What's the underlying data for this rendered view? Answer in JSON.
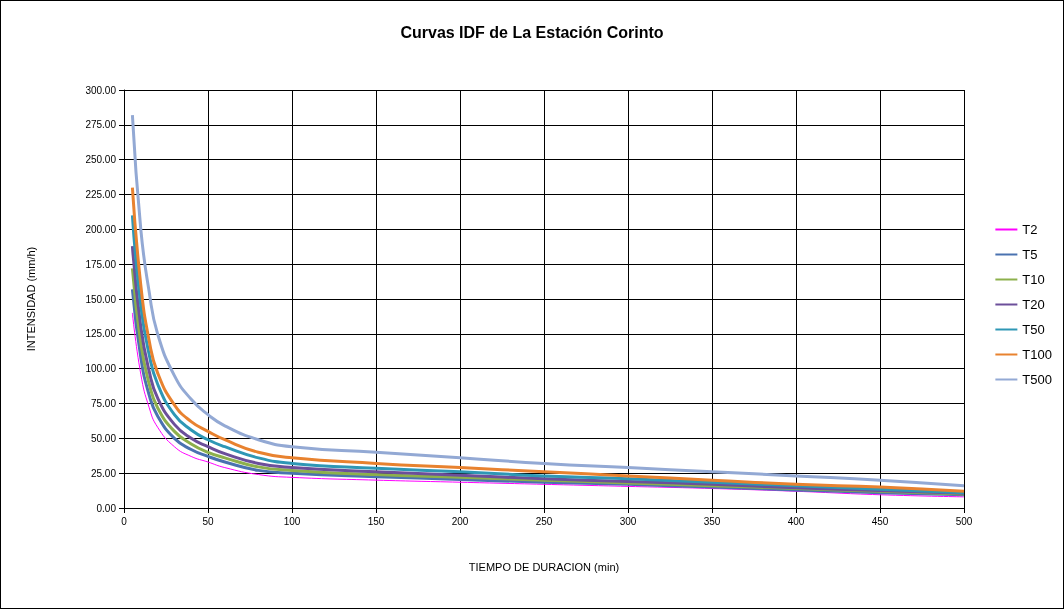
{
  "chart_data": {
    "type": "line",
    "title": "Curvas IDF de La Estación Corinto",
    "xlabel": "TIEMPO DE DURACION (min)",
    "ylabel": "INTENSIDAD (mm/h)",
    "x": [
      5,
      10,
      15,
      20,
      30,
      40,
      50,
      60,
      80,
      100,
      150,
      200,
      250,
      300,
      350,
      400,
      450,
      500
    ],
    "xlim": [
      0,
      500
    ],
    "xticks": [
      0,
      50,
      100,
      150,
      200,
      250,
      300,
      350,
      400,
      450,
      500
    ],
    "ylim": [
      0,
      300
    ],
    "yticks": [
      {
        "value": 0,
        "label": "0.00"
      },
      {
        "value": 25,
        "label": "25.00"
      },
      {
        "value": 50,
        "label": "50.00"
      },
      {
        "value": 75,
        "label": "75.00"
      },
      {
        "value": 100,
        "label": "100.00"
      },
      {
        "value": 125,
        "label": "125.00"
      },
      {
        "value": 150,
        "label": "150.00"
      },
      {
        "value": 175,
        "label": "175.00"
      },
      {
        "value": 200,
        "label": "200.00"
      },
      {
        "value": 225,
        "label": "225.00"
      },
      {
        "value": 250,
        "label": "250.00"
      },
      {
        "value": 275,
        "label": "275.00"
      },
      {
        "value": 300,
        "label": "300.00"
      }
    ],
    "grid": true,
    "legend": "right",
    "marker": "none",
    "line_style": "solid",
    "series": [
      {
        "name": "T2",
        "color": "#ff00ff",
        "values": [
          140,
          96,
          72,
          58,
          44,
          37,
          33,
          29,
          24,
          22,
          20,
          18.5,
          17,
          15.5,
          14,
          12,
          9.5,
          8
        ]
      },
      {
        "name": "T5",
        "color": "#4a72b0",
        "values": [
          157,
          108,
          81,
          66,
          50,
          42,
          37,
          33,
          27,
          25,
          22.5,
          20.5,
          18.5,
          17,
          15,
          13,
          11,
          9.5
        ]
      },
      {
        "name": "T10",
        "color": "#8db04c",
        "values": [
          172,
          118,
          89,
          72,
          55,
          46,
          40,
          36,
          29.5,
          27,
          24,
          22,
          20,
          18,
          16,
          14,
          12,
          10
        ]
      },
      {
        "name": "T20",
        "color": "#6c4f9a",
        "values": [
          188,
          130,
          98,
          79,
          60,
          50,
          44,
          39,
          32,
          29,
          26,
          23.5,
          21,
          19,
          17,
          14.5,
          12.5,
          10.5
        ]
      },
      {
        "name": "T50",
        "color": "#2e97b5",
        "values": [
          210,
          145,
          110,
          89,
          67,
          56,
          49,
          44,
          36,
          32,
          28.5,
          26,
          23,
          21,
          18.5,
          16,
          13.5,
          11
        ]
      },
      {
        "name": "T100",
        "color": "#e8822f",
        "values": [
          230,
          160,
          120,
          97,
          74,
          62,
          55,
          49,
          40,
          36,
          32,
          29,
          26,
          23,
          20,
          17,
          15,
          12
        ]
      },
      {
        "name": "T500",
        "color": "#93a9d4",
        "values": [
          282,
          200,
          155,
          125,
          95,
          78,
          67,
          59,
          49,
          44,
          40,
          36,
          32,
          29,
          26,
          23,
          20,
          16
        ]
      }
    ]
  }
}
